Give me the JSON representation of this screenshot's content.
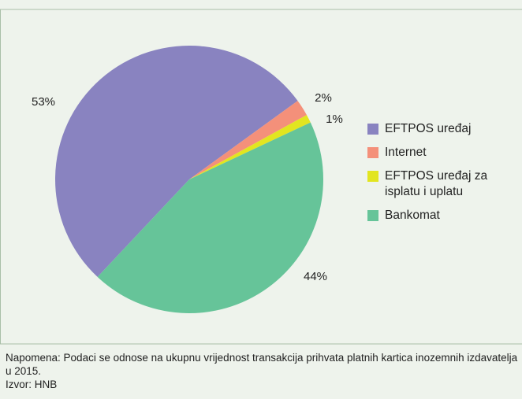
{
  "chart_data": {
    "type": "pie",
    "categories": [
      "EFTPOS uređaj",
      "Internet",
      "EFTPOS uređaj za isplatu i uplatu",
      "Bankomat"
    ],
    "values": [
      53,
      2,
      1,
      44
    ],
    "value_labels": [
      "53%",
      "2%",
      "1%",
      "44%"
    ],
    "colors": [
      "#8983c0",
      "#f4907a",
      "#e2e520",
      "#66c499"
    ],
    "legend": "right",
    "note": "Napomena: Podaci se odnose na ukupnu vrijednost transakcija prihvata platnih kartica inozemnih izdavatelja u 2015.",
    "source": "Izvor: HNB"
  }
}
